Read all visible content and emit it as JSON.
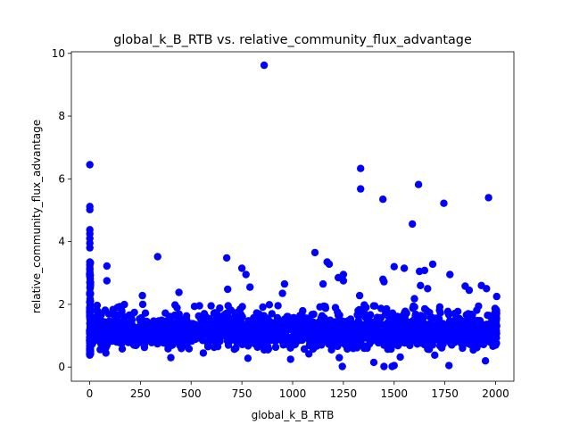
{
  "chart_data": {
    "type": "scatter",
    "title": "global_k_B_RTB vs. relative_community_flux_advantage",
    "xlabel": "global_k_B_RTB",
    "ylabel": "relative_community_flux_advantage",
    "xlim": [
      -90,
      2090
    ],
    "ylim": [
      -0.45,
      10.05
    ],
    "xticks": [
      0,
      250,
      500,
      750,
      1000,
      1250,
      1500,
      1750,
      2000
    ],
    "yticks": [
      0,
      2,
      4,
      6,
      8,
      10
    ],
    "grid": false,
    "legend": "none",
    "marker_color": "#0000ff",
    "series": [
      {
        "outliers": [
          [
            860,
            9.62
          ],
          [
            1,
            6.45
          ],
          [
            1335,
            6.33
          ],
          [
            1620,
            5.82
          ],
          [
            1335,
            5.68
          ],
          [
            1965,
            5.4
          ],
          [
            1445,
            5.35
          ],
          [
            1745,
            5.22
          ],
          [
            1,
            5.12
          ],
          [
            1,
            5.02
          ],
          [
            1590,
            4.56
          ],
          [
            1,
            4.38
          ],
          [
            1,
            4.25
          ],
          [
            1,
            4.1
          ],
          [
            1,
            3.95
          ],
          [
            1,
            3.8
          ],
          [
            1110,
            3.65
          ],
          [
            335,
            3.52
          ],
          [
            675,
            3.48
          ],
          [
            1,
            3.35
          ],
          [
            1,
            3.25
          ],
          [
            85,
            3.22
          ],
          [
            1170,
            3.35
          ],
          [
            1180,
            3.28
          ],
          [
            1690,
            3.28
          ],
          [
            1500,
            3.2
          ],
          [
            1550,
            3.15
          ],
          [
            750,
            3.15
          ],
          [
            1625,
            3.05
          ],
          [
            1650,
            3.08
          ],
          [
            770,
            2.95
          ],
          [
            1250,
            2.95
          ],
          [
            1775,
            2.95
          ],
          [
            1225,
            2.85
          ],
          [
            1445,
            2.8
          ],
          [
            1450,
            2.72
          ],
          [
            1150,
            2.65
          ],
          [
            1250,
            2.75
          ],
          [
            1850,
            2.58
          ],
          [
            1930,
            2.6
          ],
          [
            85,
            2.75
          ],
          [
            1630,
            2.6
          ],
          [
            1665,
            2.5
          ],
          [
            1955,
            2.5
          ],
          [
            680,
            2.48
          ],
          [
            790,
            2.55
          ],
          [
            960,
            2.65
          ],
          [
            1870,
            2.45
          ],
          [
            1,
            2.9
          ],
          [
            1,
            3.1
          ],
          [
            1,
            2.7
          ],
          [
            260,
            2.28
          ],
          [
            440,
            2.38
          ],
          [
            950,
            2.35
          ],
          [
            1600,
            2.18
          ],
          [
            2005,
            2.25
          ],
          [
            1330,
            2.28
          ],
          [
            1,
            0.38
          ],
          [
            1245,
            0.02
          ],
          [
            1450,
            0.02
          ],
          [
            1490,
            0.02
          ],
          [
            1500,
            0.05
          ],
          [
            1770,
            0.05
          ],
          [
            1950,
            0.2
          ],
          [
            1400,
            0.15
          ],
          [
            400,
            0.3
          ],
          [
            780,
            0.28
          ],
          [
            990,
            0.25
          ],
          [
            1230,
            0.3
          ],
          [
            1080,
            0.42
          ],
          [
            1530,
            0.32
          ],
          [
            1700,
            0.38
          ],
          [
            560,
            0.45
          ],
          [
            860,
            0.55
          ],
          [
            1,
            0.48
          ],
          [
            80,
            0.45
          ]
        ],
        "dense_band": {
          "x_min": 0,
          "x_max": 2000,
          "y_center": 1.15,
          "y_spread": 0.55
        }
      }
    ]
  }
}
